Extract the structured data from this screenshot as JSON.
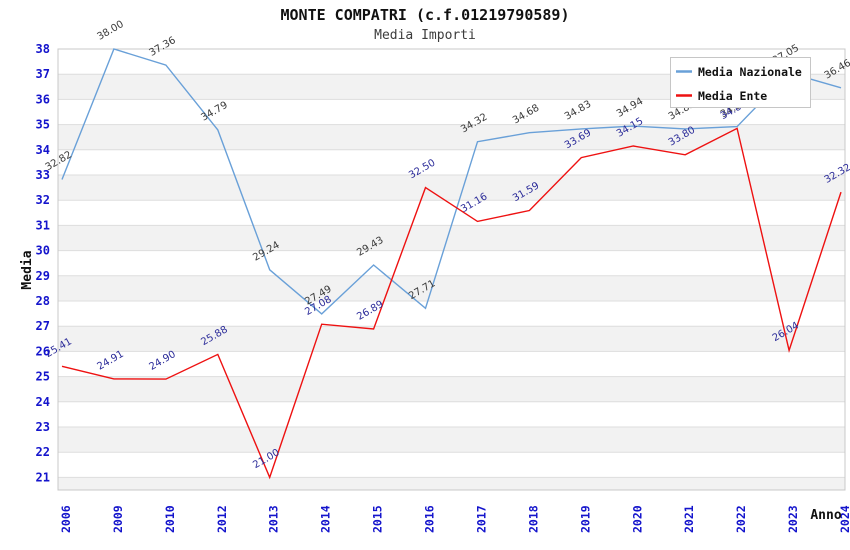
{
  "header": {
    "title": "MONTE COMPATRI (c.f.01219790589)",
    "subtitle": "Media Importi"
  },
  "axes": {
    "y_title": "Media",
    "x_title": "Anno"
  },
  "legend": {
    "position": "top-right",
    "items": [
      {
        "label": "Media Nazionale",
        "color": "#69A0D8"
      },
      {
        "label": "Media Ente",
        "color": "#EE1111"
      }
    ]
  },
  "chart_data": {
    "type": "line",
    "title": "MONTE COMPATRI (c.f.01219790589)",
    "subtitle": "Media Importi",
    "xlabel": "Anno",
    "ylabel": "Media",
    "x": [
      2006,
      2009,
      2010,
      2012,
      2013,
      2014,
      2015,
      2016,
      2017,
      2018,
      2019,
      2020,
      2021,
      2022,
      2023,
      2024
    ],
    "series": [
      {
        "name": "Media Nazionale",
        "color": "#69A0D8",
        "label_color": "#3a3a3a",
        "values": [
          32.82,
          38.0,
          37.36,
          34.79,
          29.24,
          27.49,
          29.43,
          27.71,
          34.32,
          34.68,
          34.83,
          34.94,
          34.83,
          34.92,
          37.05,
          36.46
        ]
      },
      {
        "name": "Media Ente",
        "color": "#EE1111",
        "label_color": "#2b2b99",
        "values": [
          25.41,
          24.91,
          24.9,
          25.88,
          21.0,
          27.08,
          26.89,
          32.5,
          31.16,
          31.59,
          33.69,
          34.15,
          33.8,
          34.85,
          26.04,
          32.32
        ]
      }
    ],
    "ylim": [
      21,
      38
    ],
    "plot_floor": 20.5,
    "y_tick_step": 1,
    "grid": true,
    "band_colors": [
      "#ffffff",
      "#f2f2f2"
    ],
    "tick_color": "#1414CC",
    "grid_color": "#dddddd",
    "legend_position": "top-right",
    "point_label_decimals": 2
  }
}
